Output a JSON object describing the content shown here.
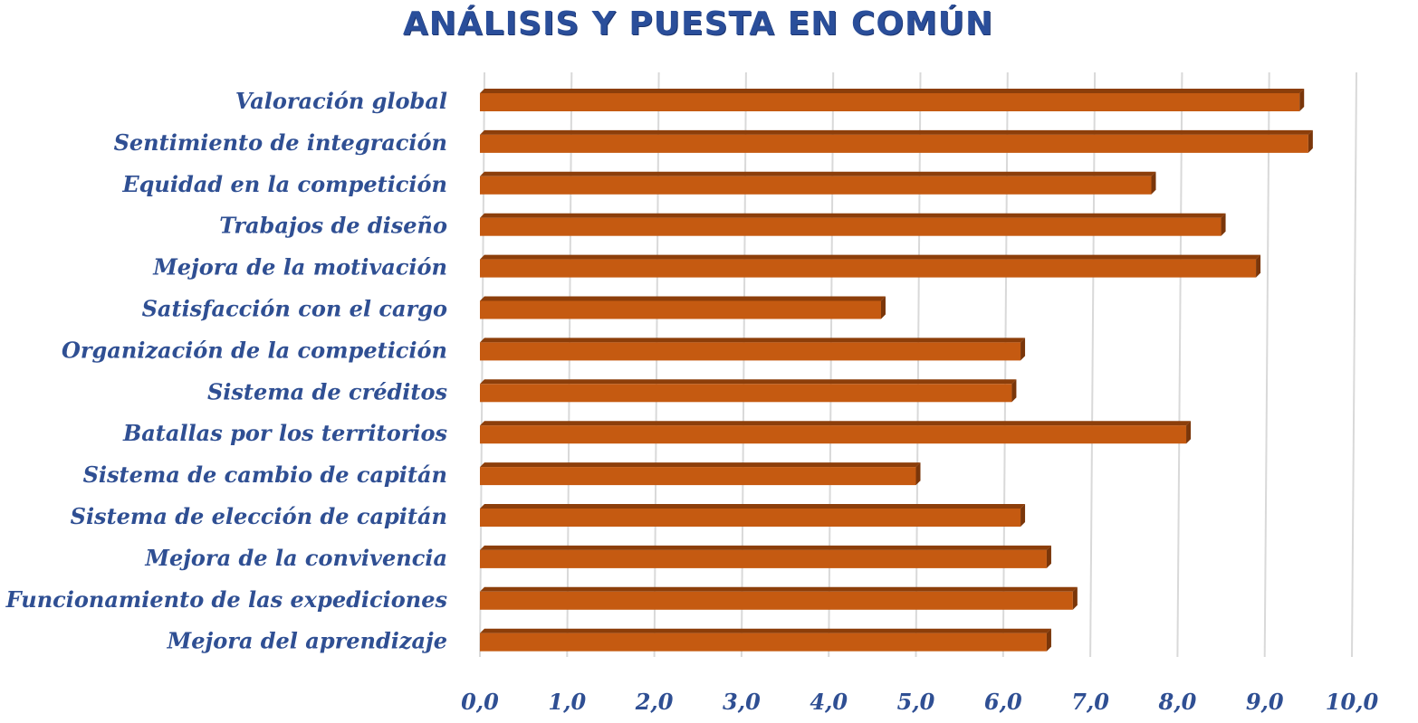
{
  "chart_data": {
    "type": "bar",
    "orientation": "horizontal",
    "title": "ANÁLISIS Y PUESTA EN COMÚN",
    "xlabel": "",
    "ylabel": "",
    "categories": [
      "Valoración global",
      "Sentimiento de integración",
      "Equidad en la competición",
      "Trabajos de diseño",
      "Mejora de la motivación",
      "Satisfacción con el cargo",
      "Organización de la competición",
      "Sistema de créditos",
      "Batallas por los territorios",
      "Sistema de cambio de capitán",
      "Sistema de elección de capitán",
      "Mejora de la convivencia",
      "Funcionamiento de las expediciones",
      "Mejora del aprendizaje"
    ],
    "values": [
      9.4,
      9.5,
      7.7,
      8.5,
      8.9,
      4.6,
      6.2,
      6.1,
      8.1,
      5.0,
      6.2,
      6.5,
      6.8,
      6.5
    ],
    "xlim": [
      0,
      10
    ],
    "ticks": [
      "0,0",
      "1,0",
      "2,0",
      "3,0",
      "4,0",
      "5,0",
      "6,0",
      "7,0",
      "8,0",
      "9,0",
      "10,0"
    ],
    "grid": "vertical",
    "legend": "none",
    "bar_color": "#c55a11",
    "bar_top_color": "#8c3e0a",
    "bar_side_color": "#7a360a",
    "label_color": "#2f4f93"
  }
}
